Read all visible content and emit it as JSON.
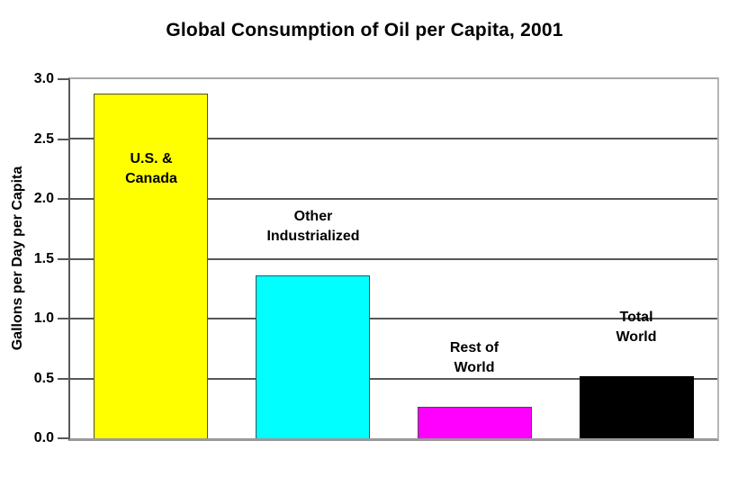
{
  "page": {
    "background_color": "#ffffff",
    "text_color": "#000000",
    "gridline_color": "#575757"
  },
  "chart_data": {
    "type": "bar",
    "title": "Global Consumption of Oil per Capita, 2001",
    "xlabel": "",
    "ylabel": "Gallons per Day per Capita",
    "ylim": [
      0,
      3.0
    ],
    "ytick_step": 0.5,
    "yticks": [
      "0.0",
      "0.5",
      "1.0",
      "1.5",
      "2.0",
      "2.5",
      "3.0"
    ],
    "grid": true,
    "legend": "none",
    "categories": [
      "U.S. & Canada",
      "Other Industrialized",
      "Rest of World",
      "Total World"
    ],
    "values": [
      2.88,
      1.36,
      0.26,
      0.52
    ],
    "bars": [
      {
        "category": "U.S. & Canada",
        "label": "U.S. &\nCanada",
        "value": 2.88,
        "color": "#ffff00",
        "label_position": "inside"
      },
      {
        "category": "Other Industrialized",
        "label": "Other\nIndustrialized",
        "value": 1.36,
        "color": "#00ffff",
        "label_position": "above"
      },
      {
        "category": "Rest of World",
        "label": "Rest of\nWorld",
        "value": 0.26,
        "color": "#ff00ff",
        "label_position": "above"
      },
      {
        "category": "Total World",
        "label": "Total\nWorld",
        "value": 0.52,
        "color": "#000000",
        "label_position": "above"
      }
    ]
  }
}
